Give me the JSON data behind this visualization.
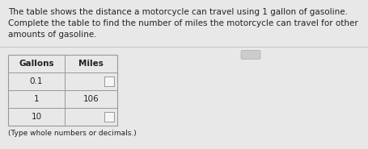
{
  "description_lines": [
    "The table shows the distance a motorcycle can travel using 1 gallon of gasoline.",
    "Complete the table to find the number of miles the motorcycle can travel for other",
    "amounts of gasoline."
  ],
  "col_headers": [
    "Gallons",
    "Miles"
  ],
  "rows": [
    {
      "gallons": "0.1",
      "miles": "",
      "miles_is_input": true
    },
    {
      "gallons": "1",
      "miles": "106",
      "miles_is_input": false
    },
    {
      "gallons": "10",
      "miles": "",
      "miles_is_input": true
    }
  ],
  "footer": "(Type whole numbers or decimals.)",
  "bg_color": "#e8e8e8",
  "table_bg": "#ebebeb",
  "input_box_color": "#f5f5f5",
  "text_color": "#222222",
  "desc_font_size": 7.5,
  "header_font_size": 7.5,
  "body_font_size": 7.5,
  "footer_font_size": 6.5,
  "line_color": "#999999",
  "divider_color": "#bbbbbb",
  "pill_color": "#cccccc",
  "pill_edge_color": "#aaaaaa"
}
